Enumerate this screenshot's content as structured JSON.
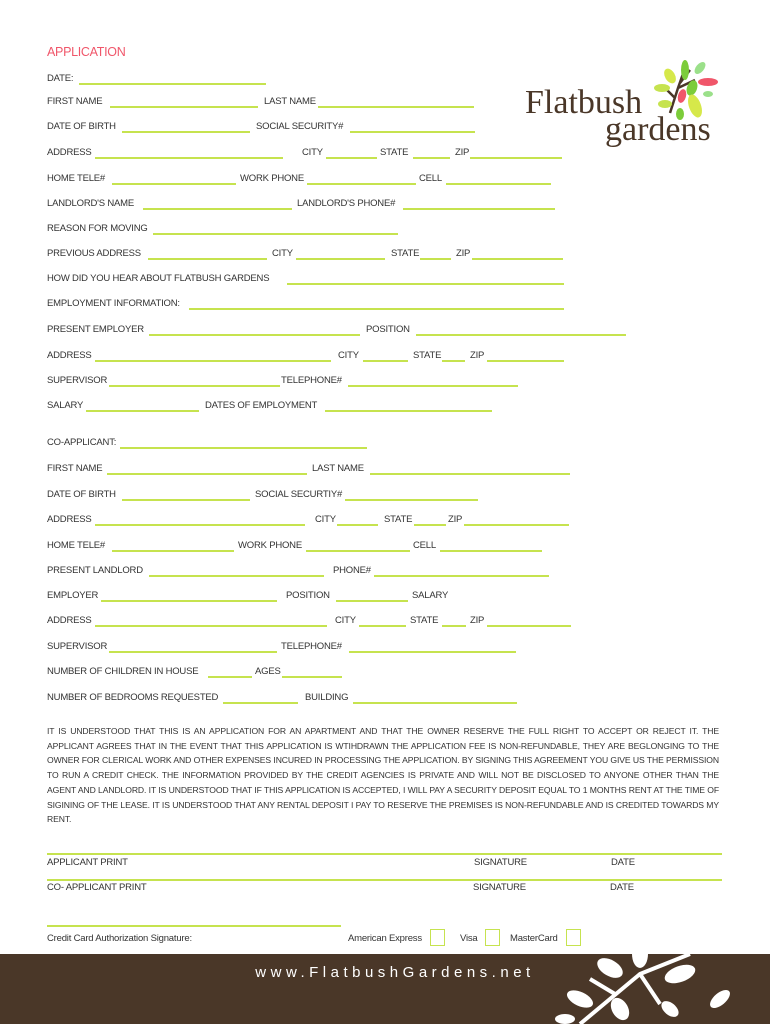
{
  "title": "APPLICATION",
  "logo": {
    "line1": "Flatbush",
    "line2": "gardens"
  },
  "rows": [
    [
      "DATE:"
    ],
    [
      "FIRST NAME",
      "LAST NAME"
    ],
    [
      "DATE OF BIRTH",
      "SOCIAL SECURITY#"
    ],
    [
      "ADDRESS",
      "CITY",
      "STATE",
      "ZIP"
    ],
    [
      "HOME TELE#",
      "WORK PHONE",
      "CELL"
    ],
    [
      "LANDLORD'S NAME",
      "LANDLORD'S PHONE#"
    ],
    [
      "REASON FOR MOVING"
    ],
    [
      "PREVIOUS ADDRESS",
      "CITY",
      "STATE",
      "ZIP"
    ],
    [
      "HOW DID YOU HEAR ABOUT FLATBUSH  GARDENS"
    ],
    [
      "EMPLOYMENT INFORMATION:"
    ],
    [
      "PRESENT EMPLOYER",
      "POSITION"
    ],
    [
      "ADDRESS",
      "CITY",
      "STATE",
      "ZIP"
    ],
    [
      "SUPERVISOR",
      "TELEPHONE#"
    ],
    [
      "SALARY",
      "DATES OF EMPLOYMENT"
    ],
    [
      "CO-APPLICANT:"
    ],
    [
      "FIRST NAME",
      "LAST NAME"
    ],
    [
      "DATE OF BIRTH",
      "SOCIAL SECURTIY#"
    ],
    [
      "ADDRESS",
      "CITY",
      "STATE",
      "ZIP"
    ],
    [
      "HOME TELE#",
      "WORK PHONE",
      "CELL"
    ],
    [
      "PRESENT LANDLORD",
      "PHONE#"
    ],
    [
      "EMPLOYER",
      "POSITION",
      "SALARY"
    ],
    [
      "ADDRESS",
      "CITY",
      "STATE",
      "ZIP"
    ],
    [
      "SUPERVISOR",
      "TELEPHONE#"
    ],
    [
      "NUMBER OF CHILDREN IN HOUSE",
      "AGES"
    ],
    [
      "NUMBER OF BEDROOMS REQUESTED",
      "BUILDING"
    ]
  ],
  "agreement": "IT IS UNDERSTOOD THAT THIS IS AN APPLICATION FOR AN APARTMENT AND THAT THE OWNER RESERVE THE FULL RIGHT TO ACCEPT OR REJECT IT. THE APPLICANT AGREES THAT IN THE EVENT THAT THIS APPLICATION IS WTIHDRAWN THE APPLICATION FEE IS NON-REFUNDABLE, THEY ARE BEGLONGING TO THE OWNER FOR CLERICAL WORK AND OTHER EXPENSES INCURED IN PROCESSING THE APPLICATION. BY SIGNING THIS AGREEMENT YOU GIVE US THE PERMISSION TO RUN A CREDIT CHECK.  THE INFORMATION PROVIDED BY THE CREDIT AGENCIES IS PRIVATE AND WILL NOT BE DISCLOSED TO ANYONE OTHER THAN THE AGENT AND LANDLORD. IT IS UNDERSTOOD THAT IF THIS APPLICATION IS ACCEPTED, I WILL PAY A SECURITY DEPOSIT EQUAL TO 1 MONTHS RENT AT THE TIME OF SIGINING OF THE LEASE. IT IS UNDERSTOOD THAT ANY RENTAL DEPOSIT I PAY TO RESERVE THE PREMISES IS NON-REFUNDABLE AND IS CREDITED TOWARDS MY RENT.",
  "signatures": {
    "applicant_print": "APPLICANT PRINT",
    "co_applicant_print": "CO- APPLICANT PRINT",
    "signature": "SIGNATURE",
    "date": "DATE",
    "cc_auth": "Credit Card Authorization Signature:",
    "amex": "American Express",
    "visa": "Visa",
    "mastercard": "MasterCard"
  },
  "footer": {
    "url": "www.FlatbushGardens.net"
  },
  "colors": {
    "accent_line": "#c6e34f",
    "title": "#f0566a",
    "footer_bg": "#4a3728"
  }
}
